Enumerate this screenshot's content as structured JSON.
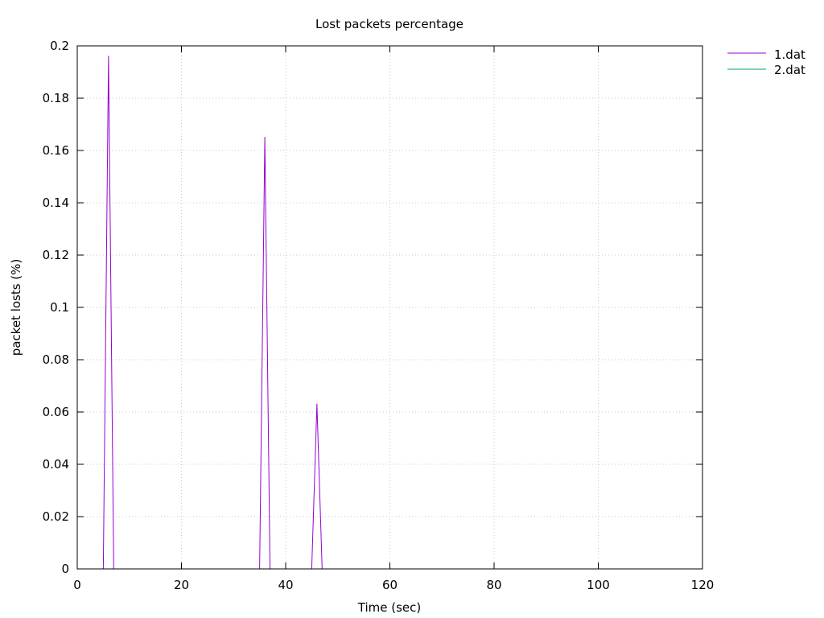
{
  "chart_data": {
    "type": "line",
    "title": "Lost packets percentage",
    "xlabel": "Time (sec)",
    "ylabel": "packet losts (%)",
    "xlim": [
      0,
      120
    ],
    "ylim": [
      0,
      0.2
    ],
    "x_ticks": [
      0,
      20,
      40,
      60,
      80,
      100,
      120
    ],
    "y_ticks": [
      0,
      0.02,
      0.04,
      0.06,
      0.08,
      0.1,
      0.12,
      0.14,
      0.16,
      0.18,
      0.2
    ],
    "grid": true,
    "legend_position": "outside top-right",
    "series": [
      {
        "name": "1.dat",
        "color": "#9400d3",
        "points": [
          [
            5,
            0
          ],
          [
            6,
            0.196
          ],
          [
            7,
            0
          ],
          [
            35,
            0
          ],
          [
            36,
            0.165
          ],
          [
            37,
            0
          ],
          [
            45,
            0
          ],
          [
            46,
            0.063
          ],
          [
            47,
            0
          ]
        ]
      },
      {
        "name": "2.dat",
        "color": "#009e73",
        "points": []
      }
    ]
  }
}
